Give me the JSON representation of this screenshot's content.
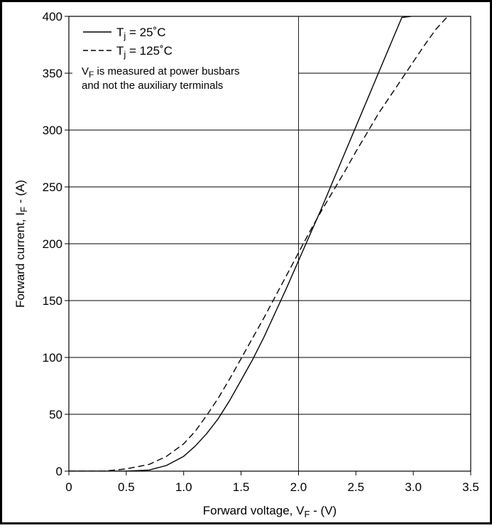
{
  "chart_data": {
    "type": "line",
    "xlabel": {
      "main": "Forward voltage, V",
      "sub": "F",
      "tail": " - (V)"
    },
    "ylabel": {
      "main": "Forward current, I",
      "sub": "F",
      "tail": " - (A)"
    },
    "xlim": [
      0,
      3.5
    ],
    "ylim": [
      0,
      400
    ],
    "x_ticks": [
      0,
      0.5,
      1.0,
      1.5,
      2.0,
      2.5,
      3.0,
      3.5
    ],
    "x_tick_labels": [
      "0",
      "0.5",
      "1.0",
      "1.5",
      "2.0",
      "2.5",
      "3.0",
      "3.5"
    ],
    "y_ticks": [
      0,
      50,
      100,
      150,
      200,
      250,
      300,
      350,
      400
    ],
    "y_tick_labels": [
      "0",
      "50",
      "100",
      "150",
      "200",
      "250",
      "300",
      "350",
      "400"
    ],
    "grid": {
      "horizontal": true,
      "vertical_at": [
        2.0
      ]
    },
    "legend": {
      "position": "top-left",
      "entries": [
        {
          "main": "T",
          "sub": "j",
          "tail": " = 25˚C",
          "style": "solid"
        },
        {
          "main": "T",
          "sub": "j",
          "tail": " = 125˚C",
          "style": "dashed"
        }
      ],
      "note": [
        {
          "main": "V",
          "sub": "F",
          "tail": " is measured at power busbars"
        },
        {
          "main": "and not the auxiliary terminals",
          "sub": "",
          "tail": ""
        }
      ]
    },
    "series": [
      {
        "style": "solid",
        "x": [
          0,
          0.5,
          0.7,
          0.85,
          1.0,
          1.1,
          1.2,
          1.3,
          1.4,
          1.5,
          1.6,
          1.7,
          1.8,
          1.9,
          2.0,
          2.1,
          2.2,
          2.3,
          2.4,
          2.5,
          2.6,
          2.7,
          2.8,
          2.9,
          2.98
        ],
        "y": [
          0,
          0,
          1,
          5,
          13,
          22,
          33,
          46,
          62,
          80,
          98,
          118,
          140,
          162,
          185,
          208,
          231,
          255,
          279,
          303,
          327,
          351,
          375,
          399,
          400
        ]
      },
      {
        "style": "dashed",
        "x": [
          0,
          0.3,
          0.5,
          0.7,
          0.85,
          1.0,
          1.1,
          1.2,
          1.3,
          1.4,
          1.5,
          1.6,
          1.7,
          1.8,
          1.9,
          2.0,
          2.1,
          2.2,
          2.3,
          2.4,
          2.5,
          2.6,
          2.7,
          2.8,
          2.9,
          3.0,
          3.1,
          3.2,
          3.3
        ],
        "y": [
          0,
          0,
          2,
          6,
          13,
          24,
          35,
          49,
          64,
          81,
          99,
          117,
          135,
          154,
          173,
          192,
          211,
          229,
          246,
          263,
          281,
          298,
          315,
          330,
          345,
          360,
          375,
          389,
          400
        ]
      }
    ]
  }
}
